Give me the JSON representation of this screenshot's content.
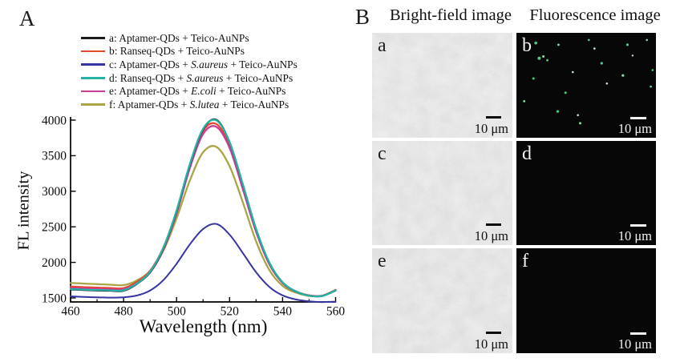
{
  "panelA": {
    "label": "A"
  },
  "chart_data": {
    "type": "line",
    "title": "",
    "xlabel": "Wavelength (nm)",
    "ylabel": "FL intensity",
    "xlim": [
      460,
      560
    ],
    "ylim": [
      1440,
      4045
    ],
    "xticks": [
      460,
      480,
      500,
      520,
      540,
      560
    ],
    "xticks_minor": [
      470,
      490,
      510,
      530,
      550
    ],
    "yticks": [
      1500,
      2000,
      2500,
      3000,
      3500,
      4000
    ],
    "grid": "off",
    "legend_position": "top-left above plot",
    "peak_wavelength_nm": 515,
    "x": [
      460,
      465,
      470,
      475,
      480,
      485,
      490,
      495,
      500,
      505,
      510,
      515,
      520,
      525,
      530,
      535,
      540,
      545,
      550,
      555,
      560
    ],
    "series": [
      {
        "id": "a",
        "color": "#1c1c1c",
        "legend_pre": "a: Aptamer-QDs + Teico-AuNPs",
        "legend_species": "",
        "legend_post": "",
        "values": [
          1618,
          1611,
          1605,
          1601,
          1601,
          1697,
          1862,
          2195,
          2718,
          3370,
          3870,
          4005,
          3688,
          3093,
          2466,
          1993,
          1718,
          1591,
          1532,
          1528,
          1604
        ]
      },
      {
        "id": "b",
        "color": "#e8472f",
        "legend_pre": "b: Ranseq-QDs + Teico-AuNPs",
        "legend_species": "",
        "legend_post": "",
        "values": [
          1660,
          1652,
          1645,
          1640,
          1638,
          1725,
          1882,
          2208,
          2725,
          3365,
          3850,
          3945,
          3645,
          3060,
          2448,
          1985,
          1716,
          1593,
          1536,
          1532,
          1610
        ]
      },
      {
        "id": "c",
        "color": "#3534a2",
        "legend_pre": "c: Aptamer-QDs + ",
        "legend_species": "S.aureus",
        "legend_post": " + Teico-AuNPs",
        "values": [
          1522,
          1515,
          1509,
          1505,
          1509,
          1534,
          1605,
          1750,
          1980,
          2252,
          2470,
          2540,
          2390,
          2132,
          1860,
          1655,
          1536,
          1479,
          1452,
          1442,
          1447
        ]
      },
      {
        "id": "d",
        "color": "#25b3a7",
        "legend_pre": "d: Ranseq-QDs + ",
        "legend_species": "S.aureus",
        "legend_post": " + Teico-AuNPs",
        "values": [
          1624,
          1617,
          1611,
          1607,
          1607,
          1702,
          1868,
          2203,
          2728,
          3380,
          3878,
          3995,
          3692,
          3097,
          2469,
          1995,
          1719,
          1592,
          1532,
          1528,
          1605
        ]
      },
      {
        "id": "e",
        "color": "#c93c96",
        "legend_pre": "e: Aptamer-QDs + ",
        "legend_species": "E.coli",
        "legend_post": " + Teico-AuNPs",
        "values": [
          1640,
          1632,
          1626,
          1621,
          1620,
          1704,
          1858,
          2178,
          2690,
          3325,
          3805,
          3905,
          3610,
          3032,
          2430,
          1972,
          1710,
          1589,
          1534,
          1530,
          1608
        ]
      },
      {
        "id": "f",
        "color": "#a9a545",
        "legend_pre": "f: Aptamer-QDs + ",
        "legend_species": "S.lutea",
        "legend_post": " + Teico-AuNPs",
        "values": [
          1710,
          1702,
          1694,
          1686,
          1680,
          1745,
          1880,
          2165,
          2620,
          3150,
          3548,
          3625,
          3352,
          2845,
          2295,
          1892,
          1670,
          1576,
          1530,
          1532,
          1614
        ]
      }
    ],
    "draw_order": [
      "c",
      "f",
      "b",
      "e",
      "a",
      "d"
    ]
  },
  "panelB": {
    "label": "B",
    "col_headers": [
      "Bright-field image",
      "Fluorescence image"
    ],
    "dot_colors": [
      "#4fd684",
      "#8ceab0",
      "#c8f5dc",
      "#5ecfbe"
    ],
    "tiles": [
      {
        "letter": "a",
        "type": "brightfield",
        "scale_label": "10 μm"
      },
      {
        "letter": "b",
        "type": "fluorescence",
        "scale_label": "10 μm",
        "dots": [
          [
            0.139,
            0.097,
            1.8,
            0
          ],
          [
            0.302,
            0.114,
            1.4,
            1
          ],
          [
            0.559,
            0.15,
            1.3,
            2
          ],
          [
            0.796,
            0.114,
            1.6,
            0
          ],
          [
            0.935,
            0.068,
            1.3,
            1
          ],
          [
            0.163,
            0.242,
            2.0,
            0
          ],
          [
            0.193,
            0.225,
            1.5,
            1
          ],
          [
            0.222,
            0.261,
            1.4,
            0
          ],
          [
            0.611,
            0.29,
            1.6,
            3
          ],
          [
            0.404,
            0.374,
            1.3,
            2
          ],
          [
            0.122,
            0.435,
            1.5,
            0
          ],
          [
            0.763,
            0.406,
            1.6,
            1
          ],
          [
            0.648,
            0.483,
            1.3,
            2
          ],
          [
            0.352,
            0.57,
            1.5,
            0
          ],
          [
            0.963,
            0.512,
            1.4,
            3
          ],
          [
            0.056,
            0.652,
            1.4,
            1
          ],
          [
            0.296,
            0.749,
            1.6,
            0
          ],
          [
            0.441,
            0.785,
            1.3,
            2
          ],
          [
            0.457,
            0.862,
            1.5,
            1
          ],
          [
            0.976,
            0.355,
            1.3,
            0
          ],
          [
            0.833,
            0.217,
            1.2,
            2
          ],
          [
            0.519,
            0.068,
            1.3,
            3
          ]
        ]
      },
      {
        "letter": "c",
        "type": "brightfield",
        "scale_label": "10 μm"
      },
      {
        "letter": "d",
        "type": "fluorescence",
        "scale_label": "10 μm",
        "dots": []
      },
      {
        "letter": "e",
        "type": "brightfield",
        "scale_label": "10 μm"
      },
      {
        "letter": "f",
        "type": "fluorescence",
        "scale_label": "10 μm",
        "dots": []
      }
    ]
  }
}
